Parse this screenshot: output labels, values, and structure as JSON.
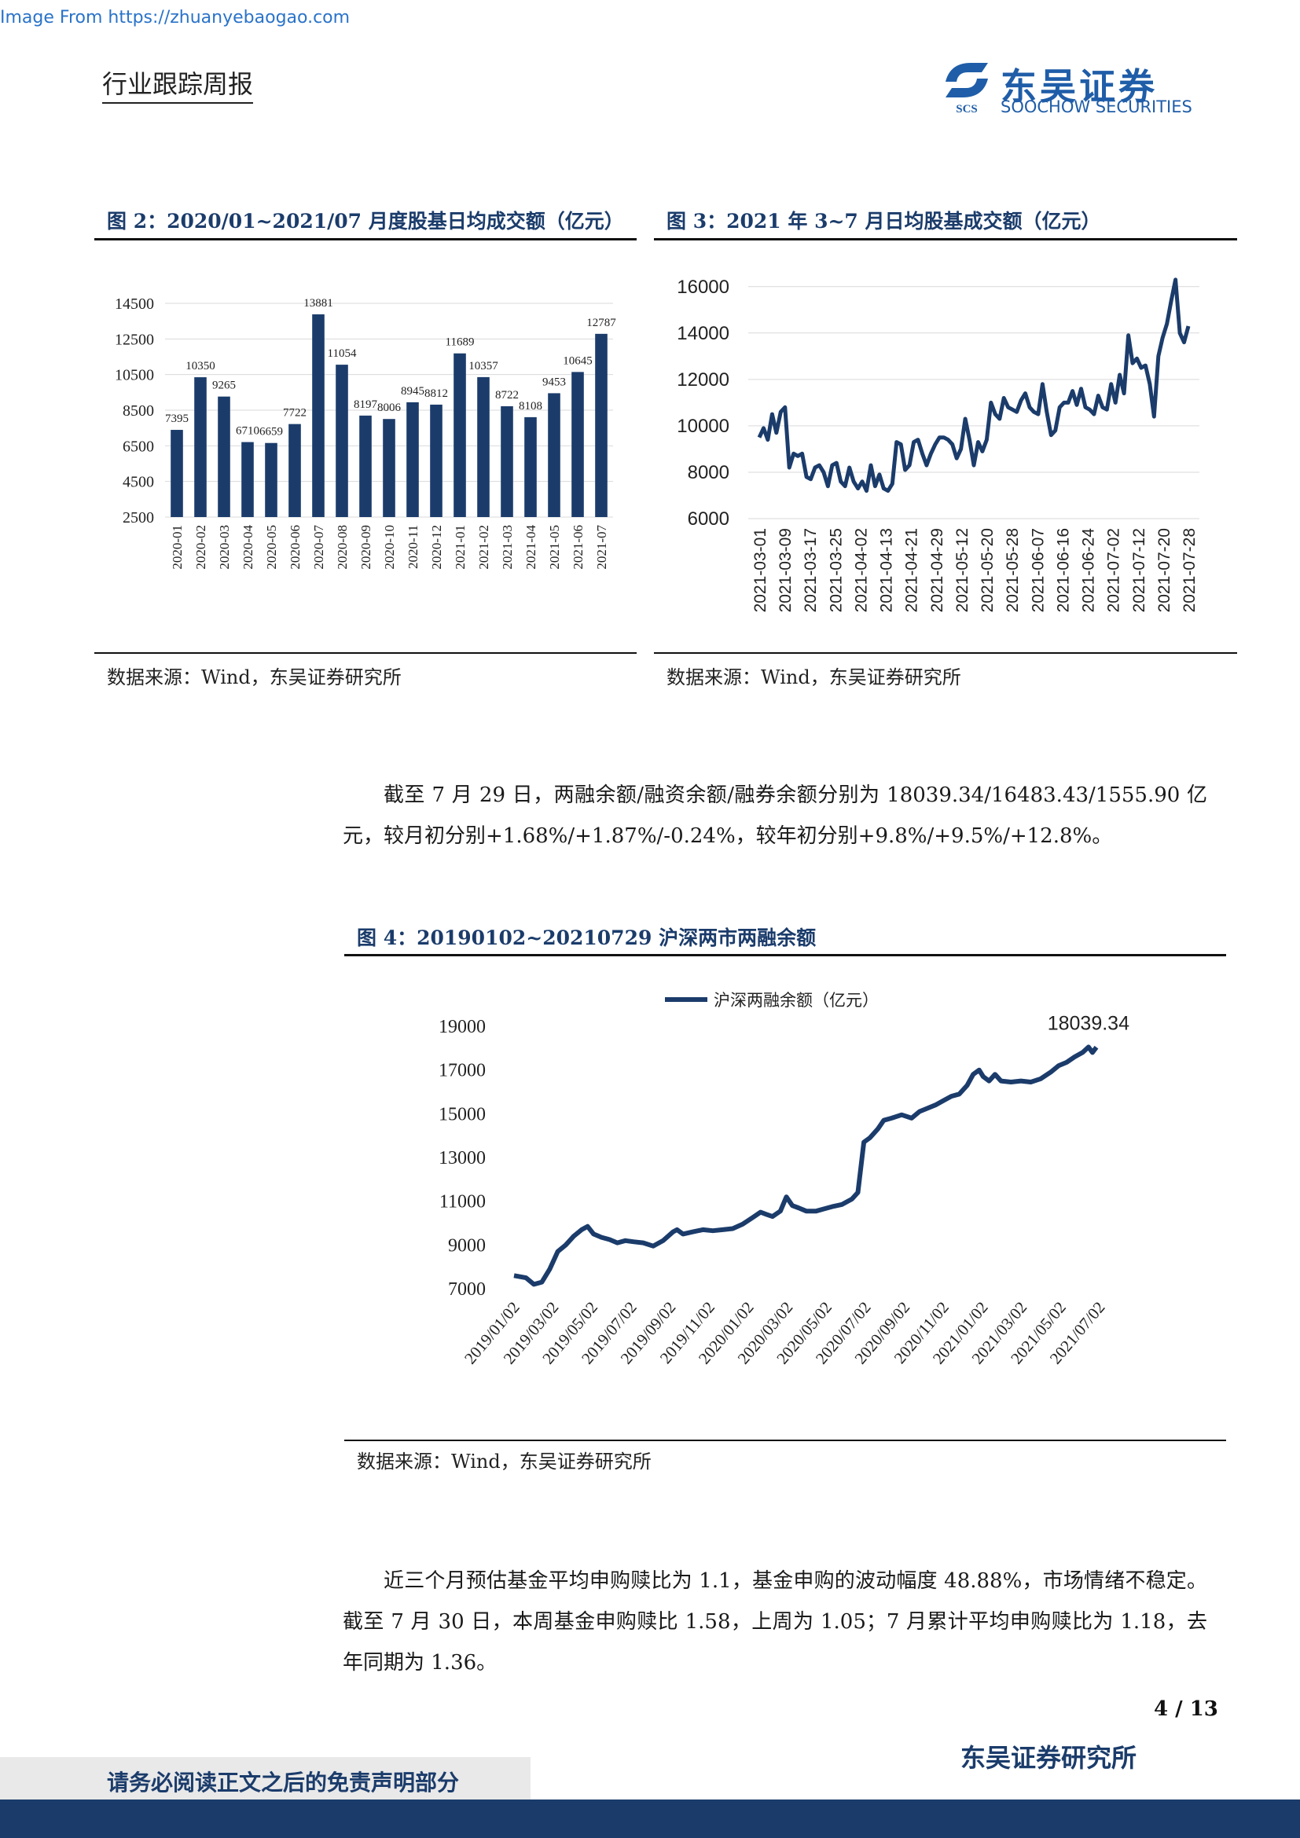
{
  "source_url": "Image From https://zhuanyebaogao.com",
  "header": {
    "title": "行业跟踪周报"
  },
  "logo": {
    "cn": "东吴证券",
    "en": "SOOCHOW SECURITIES",
    "mark": "SCS"
  },
  "colors": {
    "primary": "#1b3c6b",
    "logo_blue": "#1f5da8"
  },
  "figures": [
    {
      "title": "图 2：2020/01~2021/07 月度股基日均成交额（亿元）",
      "source": "数据来源：Wind，东吴证券研究所"
    },
    {
      "title": "图 3：2021 年 3~7 月日均股基成交额（亿元）",
      "source": "数据来源：Wind，东吴证券研究所"
    },
    {
      "title": "图 4：20190102~20210729 沪深两市两融余额",
      "source": "数据来源：Wind，东吴证券研究所"
    }
  ],
  "paragraphs": [
    "截至 7 月 29 日，两融余额/融资余额/融券余额分别为 18039.34/16483.43/1555.90 亿元，较月初分别+1.68%/+1.87%/-0.24%，较年初分别+9.8%/+9.5%/+12.8%。",
    "近三个月预估基金平均申购赎比为 1.1，基金申购的波动幅度 48.88%，市场情绪不稳定。截至 7 月 30 日，本周基金申购赎比 1.58，上周为 1.05；7 月累计平均申购赎比为 1.18，去年同期为 1.36。"
  ],
  "footer": {
    "page": "4 / 13",
    "org": "东吴证券研究所",
    "disclaimer": "请务必阅读正文之后的免责声明部分"
  },
  "chart_data": [
    {
      "type": "bar",
      "categories": [
        "2020-01",
        "2020-02",
        "2020-03",
        "2020-04",
        "2020-05",
        "2020-06",
        "2020-07",
        "2020-08",
        "2020-09",
        "2020-10",
        "2020-11",
        "2020-12",
        "2021-01",
        "2021-02",
        "2021-03",
        "2021-04",
        "2021-05",
        "2021-06",
        "2021-07"
      ],
      "values": [
        7395,
        10350,
        9265,
        6710,
        6659,
        7722,
        13881,
        11054,
        8197,
        8006,
        8945,
        8812,
        11689,
        10357,
        8722,
        8108,
        9453,
        10645,
        12787
      ],
      "y_ticks": [
        2500,
        4500,
        6500,
        8500,
        10500,
        12500,
        14500
      ],
      "ylim": [
        2500,
        14500
      ],
      "color": "#1b3c6b",
      "grid": true
    },
    {
      "type": "line",
      "x_ticks": [
        "2021-03-01",
        "2021-03-09",
        "2021-03-17",
        "2021-03-25",
        "2021-04-02",
        "2021-04-13",
        "2021-04-21",
        "2021-04-29",
        "2021-05-12",
        "2021-05-20",
        "2021-05-28",
        "2021-06-07",
        "2021-06-16",
        "2021-06-24",
        "2021-07-02",
        "2021-07-12",
        "2021-07-20",
        "2021-07-28"
      ],
      "values": [
        9500,
        9900,
        9400,
        10500,
        9700,
        10600,
        10800,
        8200,
        8800,
        8700,
        8800,
        7800,
        7700,
        8200,
        8300,
        8000,
        7400,
        8300,
        8400,
        7600,
        7400,
        8200,
        7600,
        7300,
        7600,
        7200,
        8300,
        7400,
        7900,
        7300,
        7200,
        7500,
        9300,
        9200,
        8100,
        8300,
        9300,
        9400,
        8800,
        8300,
        8800,
        9200,
        9500,
        9500,
        9400,
        9200,
        8600,
        9000,
        10300,
        9400,
        8300,
        9300,
        8900,
        9400,
        11000,
        10500,
        10300,
        11200,
        10800,
        10700,
        10600,
        11100,
        11400,
        10800,
        10600,
        10500,
        11800,
        10600,
        9600,
        9800,
        10800,
        11000,
        11000,
        11500,
        10900,
        11600,
        10800,
        10700,
        10500,
        11300,
        10800,
        10700,
        11800,
        11000,
        12200,
        11400,
        13900,
        12700,
        12900,
        12500,
        12600,
        11800,
        10400,
        13000,
        13800,
        14400,
        15400,
        16300,
        14000,
        13600,
        14300
      ],
      "y_ticks": [
        6000,
        8000,
        10000,
        12000,
        14000,
        16000
      ],
      "ylim": [
        6000,
        16500
      ],
      "color": "#1b3c6b",
      "grid": true
    },
    {
      "type": "line",
      "series_name": "沪深两融余额（亿元）",
      "x_ticks": [
        "2019/01/02",
        "2019/03/02",
        "2019/05/02",
        "2019/07/02",
        "2019/09/02",
        "2019/11/02",
        "2020/01/02",
        "2020/03/02",
        "2020/05/02",
        "2020/07/02",
        "2020/09/02",
        "2020/11/02",
        "2021/01/02",
        "2021/03/02",
        "2021/05/02",
        "2021/07/02"
      ],
      "x_range": [
        0,
        31
      ],
      "points": [
        [
          0,
          7600
        ],
        [
          0.6,
          7500
        ],
        [
          1,
          7200
        ],
        [
          1.4,
          7300
        ],
        [
          1.8,
          7900
        ],
        [
          2.2,
          8700
        ],
        [
          2.6,
          9000
        ],
        [
          3,
          9400
        ],
        [
          3.4,
          9700
        ],
        [
          3.7,
          9850
        ],
        [
          4,
          9500
        ],
        [
          4.4,
          9350
        ],
        [
          4.8,
          9250
        ],
        [
          5.2,
          9100
        ],
        [
          5.6,
          9200
        ],
        [
          6,
          9150
        ],
        [
          6.5,
          9100
        ],
        [
          7,
          8950
        ],
        [
          7.5,
          9200
        ],
        [
          8,
          9600
        ],
        [
          8.2,
          9700
        ],
        [
          8.5,
          9500
        ],
        [
          9,
          9600
        ],
        [
          9.5,
          9700
        ],
        [
          10,
          9650
        ],
        [
          10.5,
          9700
        ],
        [
          11,
          9750
        ],
        [
          11.5,
          9950
        ],
        [
          12,
          10250
        ],
        [
          12.4,
          10500
        ],
        [
          12.7,
          10400
        ],
        [
          13,
          10300
        ],
        [
          13.4,
          10550
        ],
        [
          13.7,
          11200
        ],
        [
          14,
          10800
        ],
        [
          14.3,
          10700
        ],
        [
          14.7,
          10550
        ],
        [
          15.2,
          10550
        ],
        [
          15.6,
          10650
        ],
        [
          16,
          10750
        ],
        [
          16.5,
          10850
        ],
        [
          17,
          11100
        ],
        [
          17.3,
          11400
        ],
        [
          17.6,
          13700
        ],
        [
          17.9,
          13900
        ],
        [
          18.3,
          14300
        ],
        [
          18.6,
          14700
        ],
        [
          19,
          14800
        ],
        [
          19.5,
          14950
        ],
        [
          20,
          14800
        ],
        [
          20.4,
          15100
        ],
        [
          20.8,
          15250
        ],
        [
          21.2,
          15400
        ],
        [
          21.6,
          15600
        ],
        [
          22,
          15800
        ],
        [
          22.4,
          15900
        ],
        [
          22.8,
          16300
        ],
        [
          23.1,
          16800
        ],
        [
          23.4,
          17000
        ],
        [
          23.6,
          16700
        ],
        [
          23.9,
          16500
        ],
        [
          24.2,
          16800
        ],
        [
          24.5,
          16500
        ],
        [
          25,
          16450
        ],
        [
          25.5,
          16500
        ],
        [
          26,
          16450
        ],
        [
          26.5,
          16600
        ],
        [
          27,
          16900
        ],
        [
          27.4,
          17200
        ],
        [
          27.8,
          17350
        ],
        [
          28.2,
          17600
        ],
        [
          28.6,
          17800
        ],
        [
          28.9,
          18050
        ],
        [
          29.1,
          17800
        ],
        [
          29.3,
          18039.34
        ]
      ],
      "y_ticks": [
        7000,
        9000,
        11000,
        13000,
        15000,
        17000,
        19000
      ],
      "ylim": [
        7000,
        19000
      ],
      "annotation": "18039.34",
      "color": "#1b3c6b",
      "legend": "top-center"
    }
  ]
}
